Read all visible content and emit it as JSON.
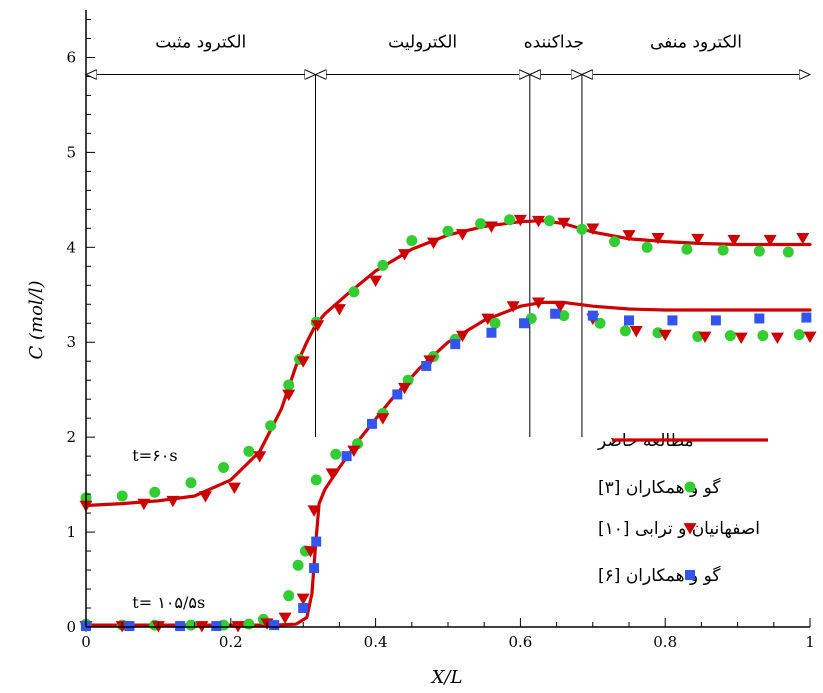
{
  "chart_data": {
    "type": "line",
    "xlabel": "X/L",
    "ylabel": "C (mol/l)",
    "xlim": [
      0,
      1
    ],
    "ylim": [
      0,
      6.5
    ],
    "x_ticks": [
      "0",
      "0.2",
      "0.4",
      "0.6",
      "0.8",
      "1"
    ],
    "y_ticks": [
      "0",
      "1",
      "2",
      "3",
      "4",
      "5",
      "6"
    ],
    "grid": false,
    "legend_position": "center-right",
    "regions": [
      {
        "label": "الکترود مثبت",
        "start": 0,
        "end": 0.317
      },
      {
        "label": "الکترولیت",
        "start": 0.317,
        "end": 0.613
      },
      {
        "label": "جداکننده",
        "start": 0.613,
        "end": 0.685
      },
      {
        "label": "الکترود منفی",
        "start": 0.685,
        "end": 1
      }
    ],
    "region_arrow_y": 5.82,
    "divider_x": [
      0.317,
      0.613,
      0.685
    ],
    "time_labels": [
      {
        "text": "t=۶۰s",
        "x": 0.075,
        "y": 1.75
      },
      {
        "text": "t= ۱۰۵/۵s",
        "x": 0.075,
        "y": 0.2
      }
    ],
    "series": [
      {
        "name": "مطالعه حاضر",
        "kind": "line",
        "color": "#cc0000",
        "group": "t60",
        "x": [
          0,
          0.05,
          0.1,
          0.15,
          0.2,
          0.24,
          0.27,
          0.29,
          0.305,
          0.317,
          0.33,
          0.36,
          0.4,
          0.45,
          0.5,
          0.55,
          0.6,
          0.63,
          0.66,
          0.7,
          0.75,
          0.8,
          0.85,
          0.9,
          0.95,
          1.0
        ],
        "y": [
          1.28,
          1.3,
          1.33,
          1.38,
          1.55,
          1.85,
          2.3,
          2.75,
          3.0,
          3.18,
          3.3,
          3.5,
          3.75,
          3.98,
          4.13,
          4.22,
          4.27,
          4.28,
          4.25,
          4.16,
          4.09,
          4.06,
          4.04,
          4.03,
          4.03,
          4.03
        ]
      },
      {
        "name": "مطالعه حاضر",
        "kind": "line",
        "color": "#cc0000",
        "group": "t105",
        "x": [
          0,
          0.1,
          0.2,
          0.26,
          0.29,
          0.305,
          0.312,
          0.317,
          0.322,
          0.33,
          0.35,
          0.38,
          0.42,
          0.46,
          0.5,
          0.55,
          0.6,
          0.63,
          0.66,
          0.7,
          0.75,
          0.8,
          0.9,
          1.0
        ],
        "y": [
          0.02,
          0.02,
          0.02,
          0.02,
          0.03,
          0.1,
          0.35,
          0.85,
          1.3,
          1.45,
          1.68,
          2.0,
          2.38,
          2.72,
          3.0,
          3.23,
          3.38,
          3.42,
          3.42,
          3.38,
          3.35,
          3.34,
          3.34,
          3.34
        ]
      },
      {
        "name": "گو و همکاران [۳]",
        "kind": "marker",
        "marker": "circle",
        "color": "#33cc33",
        "group": "t60",
        "x": [
          0,
          0.05,
          0.095,
          0.145,
          0.19,
          0.225,
          0.255,
          0.28,
          0.295,
          0.318,
          0.37,
          0.41,
          0.45,
          0.5,
          0.545,
          0.585,
          0.64,
          0.685,
          0.73,
          0.775,
          0.83,
          0.88,
          0.93,
          0.97
        ],
        "y": [
          1.36,
          1.38,
          1.42,
          1.52,
          1.68,
          1.85,
          2.12,
          2.55,
          2.82,
          3.21,
          3.53,
          3.81,
          4.07,
          4.17,
          4.25,
          4.29,
          4.28,
          4.19,
          4.06,
          4.0,
          3.98,
          3.97,
          3.96,
          3.95
        ]
      },
      {
        "name": "گو و همکاران [۳]",
        "kind": "marker",
        "marker": "circle",
        "color": "#33cc33",
        "group": "t105",
        "x": [
          0,
          0.05,
          0.095,
          0.145,
          0.19,
          0.225,
          0.245,
          0.28,
          0.293,
          0.303,
          0.318,
          0.345,
          0.375,
          0.41,
          0.445,
          0.48,
          0.51,
          0.565,
          0.615,
          0.66,
          0.71,
          0.745,
          0.79,
          0.845,
          0.89,
          0.935,
          0.985
        ],
        "y": [
          0.03,
          0.02,
          0.02,
          0.02,
          0.02,
          0.03,
          0.08,
          0.33,
          0.65,
          0.8,
          1.55,
          1.82,
          1.93,
          2.25,
          2.6,
          2.85,
          3.03,
          3.2,
          3.25,
          3.28,
          3.2,
          3.12,
          3.1,
          3.06,
          3.07,
          3.07,
          3.08
        ]
      },
      {
        "name": "اصفهانیان و ترابی [۱۰]",
        "kind": "marker",
        "marker": "triangle-down",
        "color": "#cc0000",
        "group": "t60",
        "x": [
          0,
          0.08,
          0.12,
          0.165,
          0.205,
          0.24,
          0.28,
          0.3,
          0.32,
          0.35,
          0.4,
          0.44,
          0.48,
          0.52,
          0.56,
          0.6,
          0.625,
          0.66,
          0.7,
          0.75,
          0.79,
          0.845,
          0.895,
          0.945,
          0.99
        ],
        "y": [
          1.28,
          1.3,
          1.33,
          1.38,
          1.47,
          1.8,
          2.45,
          2.8,
          3.18,
          3.35,
          3.65,
          3.93,
          4.05,
          4.14,
          4.22,
          4.29,
          4.28,
          4.26,
          4.2,
          4.13,
          4.1,
          4.09,
          4.08,
          4.08,
          4.1
        ]
      },
      {
        "name": "اصفهانیان و ترابی [۱۰]",
        "kind": "marker",
        "marker": "triangle-down",
        "color": "#cc0000",
        "group": "t105",
        "x": [
          0,
          0.05,
          0.1,
          0.16,
          0.21,
          0.25,
          0.275,
          0.3,
          0.31,
          0.315,
          0.34,
          0.37,
          0.41,
          0.44,
          0.475,
          0.52,
          0.555,
          0.59,
          0.625,
          0.655,
          0.7,
          0.76,
          0.8,
          0.855,
          0.905,
          0.955,
          1.0
        ],
        "y": [
          0.01,
          0.01,
          0.01,
          0.01,
          0.01,
          0.04,
          0.1,
          0.3,
          0.8,
          1.23,
          1.62,
          1.86,
          2.2,
          2.52,
          2.81,
          3.07,
          3.25,
          3.38,
          3.42,
          3.38,
          3.25,
          3.12,
          3.08,
          3.06,
          3.05,
          3.05,
          3.06
        ]
      },
      {
        "name": "گو و همکاران [۶]",
        "kind": "marker",
        "marker": "square",
        "color": "#3355ee",
        "group": "t105",
        "x": [
          0,
          0.06,
          0.13,
          0.18,
          0.26,
          0.3,
          0.315,
          0.318,
          0.36,
          0.395,
          0.43,
          0.47,
          0.51,
          0.56,
          0.605,
          0.648,
          0.7,
          0.75,
          0.81,
          0.87,
          0.93,
          0.995
        ],
        "y": [
          0.01,
          0.01,
          0.01,
          0.01,
          0.02,
          0.2,
          0.62,
          0.9,
          1.8,
          2.14,
          2.45,
          2.75,
          2.98,
          3.1,
          3.2,
          3.3,
          3.28,
          3.23,
          3.23,
          3.23,
          3.25,
          3.26
        ]
      }
    ],
    "legend": [
      {
        "label": "مطالعه حاضر",
        "kind": "line",
        "color": "#cc0000"
      },
      {
        "label": "گو و همکاران [۳]",
        "kind": "marker",
        "marker": "circle",
        "color": "#33cc33"
      },
      {
        "label": "اصفهانیان و ترابی [۱۰]",
        "kind": "marker",
        "marker": "triangle-down",
        "color": "#cc0000"
      },
      {
        "label": "گو و همکاران [۶]",
        "kind": "marker",
        "marker": "square",
        "color": "#3355ee"
      }
    ]
  }
}
